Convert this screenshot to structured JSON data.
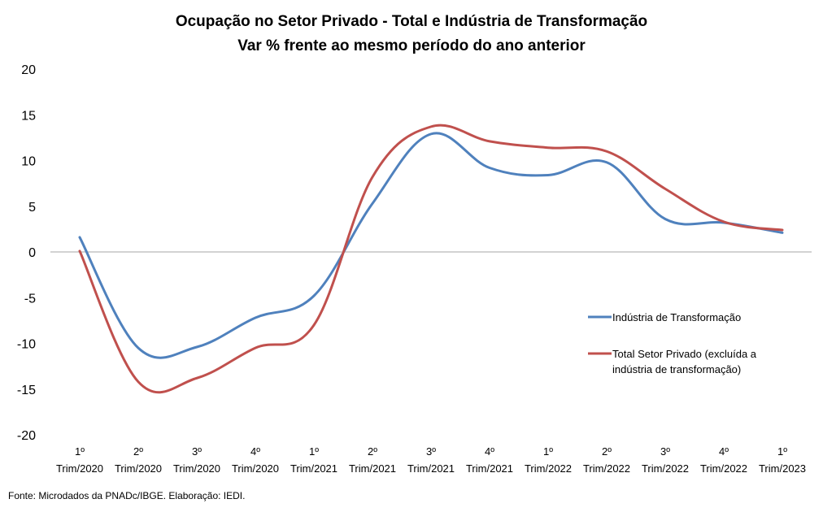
{
  "chart_data": {
    "type": "line",
    "title": "Ocupação no Setor Privado - Total e Indústria de Transformação",
    "subtitle": "Var % frente ao mesmo período do ano anterior",
    "xlabel": "",
    "ylabel": "",
    "ylim": [
      -20,
      20
    ],
    "yticks": [
      "20",
      "15",
      "10",
      "5",
      "0",
      "-5",
      "-10",
      "-15",
      "-20"
    ],
    "categories": [
      [
        "1º",
        "Trim/2020"
      ],
      [
        "2º",
        "Trim/2020"
      ],
      [
        "3º",
        "Trim/2020"
      ],
      [
        "4º",
        "Trim/2020"
      ],
      [
        "1º",
        "Trim/2021"
      ],
      [
        "2º",
        "Trim/2021"
      ],
      [
        "3º",
        "Trim/2021"
      ],
      [
        "4º",
        "Trim/2021"
      ],
      [
        "1º",
        "Trim/2022"
      ],
      [
        "2º",
        "Trim/2022"
      ],
      [
        "3º",
        "Trim/2022"
      ],
      [
        "4º",
        "Trim/2022"
      ],
      [
        "1º",
        "Trim/2023"
      ]
    ],
    "series": [
      {
        "name": "Indústria de Transformação",
        "color": "#4F81BD",
        "values": [
          1.6,
          -10.5,
          -10.4,
          -7.2,
          -4.8,
          5.3,
          12.9,
          9.2,
          8.4,
          9.8,
          3.6,
          3.2,
          2.1
        ]
      },
      {
        "name": "Total Setor Privado (excluída a indústria de transformação)",
        "legend_lines": [
          "Total Setor Privado (excluída a",
          "indústria de transformação)"
        ],
        "color": "#C0504D",
        "values": [
          0.1,
          -14.2,
          -13.8,
          -10.5,
          -8.0,
          8.2,
          13.7,
          12.1,
          11.4,
          11.0,
          6.9,
          3.3,
          2.4
        ]
      }
    ],
    "grid": false,
    "zero_line": true,
    "legend_position": "right"
  },
  "source": "Fonte: Microdados da PNADc/IBGE. Elaboração: IEDI."
}
